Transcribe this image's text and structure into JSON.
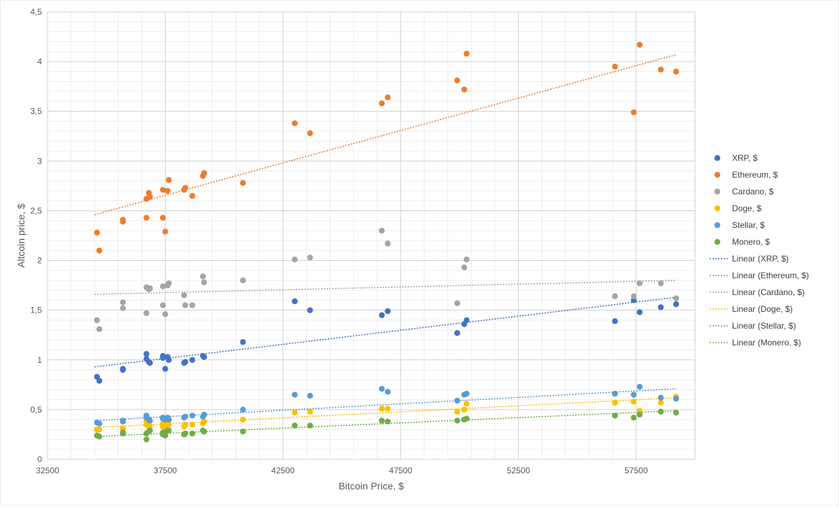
{
  "chart_data": {
    "type": "scatter",
    "title": "",
    "xlabel": "Bitcoin Price, $",
    "ylabel": "Altcoin price, $",
    "xlim": [
      32500,
      60000
    ],
    "ylim": [
      0,
      4.5
    ],
    "x_ticks": [
      32500,
      37500,
      42500,
      47500,
      52500,
      57500
    ],
    "y_ticks": [
      0,
      0.5,
      1,
      1.5,
      2,
      2.5,
      3,
      3.5,
      4,
      4.5
    ],
    "x_tick_labels": [
      "32500",
      "37500",
      "42500",
      "47500",
      "52500",
      "57500"
    ],
    "y_tick_labels": [
      "0",
      "0,5",
      "1",
      "1,5",
      "2",
      "2,5",
      "3",
      "3,5",
      "4",
      "4,5"
    ],
    "grid": true,
    "legend_position": "right",
    "x": [
      34600,
      34700,
      35700,
      35700,
      36700,
      36700,
      36800,
      36850,
      37400,
      37400,
      37500,
      37600,
      37650,
      38300,
      38350,
      38650,
      39100,
      39150,
      40800,
      43000,
      43650,
      46700,
      46950,
      49900,
      50200,
      50300,
      56600,
      57400,
      57650,
      58550,
      59200
    ],
    "series": [
      {
        "name": "XRP, $",
        "color": "#4472C4",
        "values": [
          0.83,
          0.79,
          0.91,
          0.9,
          1.01,
          1.06,
          0.98,
          0.97,
          1.04,
          1.02,
          0.91,
          1.03,
          1.0,
          0.97,
          0.98,
          1.0,
          1.04,
          1.03,
          1.18,
          1.59,
          1.5,
          1.45,
          1.49,
          1.27,
          1.36,
          1.4,
          1.39,
          1.6,
          1.48,
          1.53,
          1.56
        ],
        "trend": [
          0.93,
          1.63
        ]
      },
      {
        "name": "Ethereum, $",
        "color": "#ED7D31",
        "values": [
          2.28,
          2.1,
          2.39,
          2.41,
          2.62,
          2.43,
          2.68,
          2.64,
          2.43,
          2.71,
          2.29,
          2.7,
          2.81,
          2.71,
          2.73,
          2.65,
          2.85,
          2.88,
          2.78,
          3.38,
          3.28,
          3.58,
          3.64,
          3.81,
          3.72,
          4.08,
          3.95,
          3.49,
          4.17,
          3.92,
          3.9
        ],
        "trend": [
          2.46,
          4.07
        ]
      },
      {
        "name": "Cardano,  $",
        "color": "#A5A5A5",
        "values": [
          1.4,
          1.31,
          1.58,
          1.52,
          1.73,
          1.47,
          1.71,
          1.72,
          1.74,
          1.55,
          1.46,
          1.75,
          1.77,
          1.65,
          1.55,
          1.55,
          1.84,
          1.78,
          1.8,
          2.01,
          2.03,
          2.3,
          2.17,
          1.57,
          1.93,
          2.01,
          1.64,
          1.64,
          1.77,
          1.77,
          1.62
        ],
        "trend": [
          1.66,
          1.8
        ]
      },
      {
        "name": "Doge, $",
        "color": "#FFC000",
        "values": [
          0.3,
          0.3,
          0.31,
          0.31,
          0.35,
          0.38,
          0.33,
          0.34,
          0.33,
          0.36,
          0.31,
          0.36,
          0.35,
          0.33,
          0.35,
          0.35,
          0.36,
          0.38,
          0.4,
          0.47,
          0.48,
          0.51,
          0.51,
          0.48,
          0.5,
          0.56,
          0.57,
          0.58,
          0.49,
          0.57,
          0.63
        ],
        "trend": [
          0.32,
          0.62
        ]
      },
      {
        "name": "Stellar, $",
        "color": "#5B9BD5",
        "values": [
          0.37,
          0.36,
          0.38,
          0.39,
          0.42,
          0.44,
          0.4,
          0.39,
          0.41,
          0.42,
          0.4,
          0.42,
          0.4,
          0.42,
          0.43,
          0.44,
          0.43,
          0.45,
          0.5,
          0.65,
          0.64,
          0.71,
          0.68,
          0.59,
          0.65,
          0.66,
          0.66,
          0.65,
          0.73,
          0.62,
          0.61
        ],
        "trend": [
          0.39,
          0.71
        ]
      },
      {
        "name": "Monero, $",
        "color": "#70AD47",
        "values": [
          0.24,
          0.23,
          0.26,
          0.27,
          0.26,
          0.2,
          0.28,
          0.29,
          0.27,
          0.25,
          0.24,
          0.29,
          0.29,
          0.25,
          0.26,
          0.26,
          0.29,
          0.28,
          0.28,
          0.34,
          0.34,
          0.39,
          0.38,
          0.39,
          0.4,
          0.41,
          0.44,
          0.42,
          0.45,
          0.48,
          0.47
        ],
        "trend": [
          0.23,
          0.49
        ]
      }
    ],
    "trendline_x": [
      34500,
      59200
    ],
    "legend_entries": [
      "XRP, $",
      "Ethereum, $",
      "Cardano,  $",
      "Doge, $",
      "Stellar, $",
      "Monero, $",
      "Linear (XRP, $)",
      "Linear (Ethereum, $)",
      "Linear (Cardano,  $)",
      "Linear (Doge, $)",
      "Linear (Stellar, $)",
      "Linear (Monero, $)"
    ]
  }
}
